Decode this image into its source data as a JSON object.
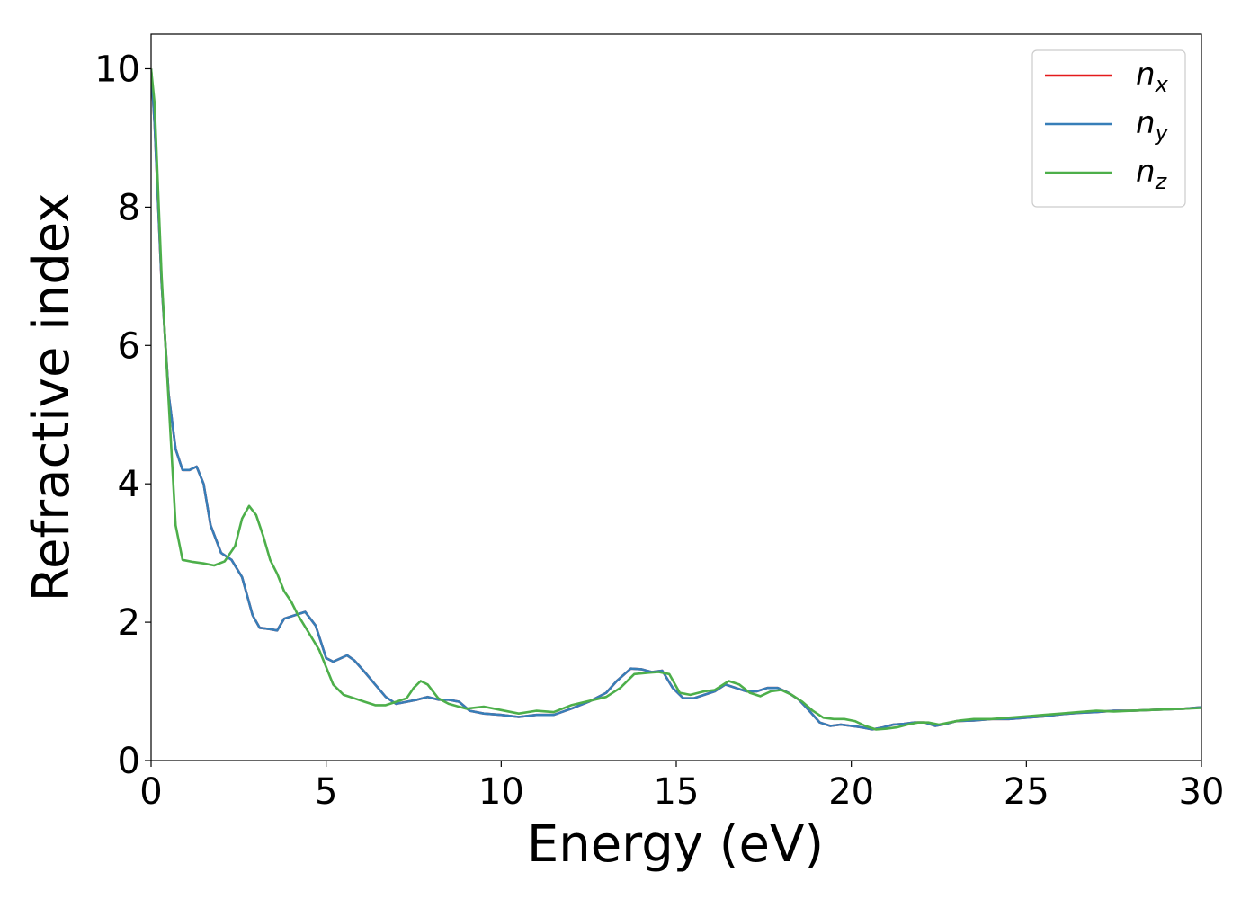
{
  "chart_data": {
    "type": "line",
    "title": "",
    "xlabel": "Energy (eV)",
    "ylabel": "Refractive index",
    "xlim": [
      0,
      30
    ],
    "ylim": [
      0,
      10.5
    ],
    "xticks": [
      0,
      5,
      10,
      15,
      20,
      25,
      30
    ],
    "yticks": [
      0,
      2,
      4,
      6,
      8,
      10
    ],
    "grid": false,
    "legend": "top-right",
    "series": [
      {
        "name": "n_x",
        "label_base": "n",
        "label_sub": "x",
        "color": "#e41a1c",
        "x": [
          0,
          0.1,
          0.3,
          0.5,
          0.7,
          0.9,
          1.1,
          1.3,
          1.5,
          1.7,
          2.0,
          2.3,
          2.6,
          2.9,
          3.1,
          3.4,
          3.6,
          3.8,
          4.1,
          4.4,
          4.7,
          5.0,
          5.2,
          5.6,
          5.8,
          6.1,
          6.4,
          6.7,
          7.0,
          7.3,
          7.6,
          7.9,
          8.2,
          8.5,
          8.8,
          9.1,
          9.5,
          10.0,
          10.5,
          11.0,
          11.5,
          12.0,
          12.5,
          13.0,
          13.3,
          13.7,
          14.0,
          14.3,
          14.6,
          14.9,
          15.2,
          15.5,
          15.8,
          16.1,
          16.4,
          16.7,
          17.0,
          17.3,
          17.6,
          17.9,
          18.2,
          18.5,
          18.8,
          19.1,
          19.4,
          19.7,
          20.0,
          20.3,
          20.6,
          20.9,
          21.2,
          21.5,
          21.8,
          22.1,
          22.4,
          22.7,
          23.0,
          23.5,
          24.0,
          24.5,
          25.0,
          25.5,
          26.0,
          26.5,
          27.0,
          27.5,
          28.0,
          28.5,
          29.0,
          29.5,
          30.0
        ],
        "values": [
          10.0,
          9.2,
          6.9,
          5.3,
          4.5,
          4.2,
          4.2,
          4.25,
          4.0,
          3.4,
          3.0,
          2.9,
          2.65,
          2.1,
          1.92,
          1.9,
          1.88,
          2.05,
          2.1,
          2.15,
          1.95,
          1.48,
          1.43,
          1.52,
          1.45,
          1.28,
          1.1,
          0.92,
          0.82,
          0.85,
          0.88,
          0.92,
          0.88,
          0.88,
          0.85,
          0.72,
          0.68,
          0.66,
          0.63,
          0.66,
          0.66,
          0.75,
          0.85,
          0.98,
          1.15,
          1.33,
          1.32,
          1.28,
          1.3,
          1.05,
          0.9,
          0.9,
          0.95,
          1.0,
          1.1,
          1.05,
          1.0,
          1.0,
          1.05,
          1.05,
          0.98,
          0.88,
          0.72,
          0.55,
          0.5,
          0.52,
          0.5,
          0.48,
          0.45,
          0.48,
          0.52,
          0.53,
          0.55,
          0.55,
          0.5,
          0.53,
          0.57,
          0.58,
          0.6,
          0.6,
          0.62,
          0.64,
          0.67,
          0.69,
          0.7,
          0.72,
          0.72,
          0.73,
          0.74,
          0.75,
          0.77
        ]
      },
      {
        "name": "n_y",
        "label_base": "n",
        "label_sub": "y",
        "color": "#377eb8",
        "x": [
          0,
          0.1,
          0.3,
          0.5,
          0.7,
          0.9,
          1.1,
          1.3,
          1.5,
          1.7,
          2.0,
          2.3,
          2.6,
          2.9,
          3.1,
          3.4,
          3.6,
          3.8,
          4.1,
          4.4,
          4.7,
          5.0,
          5.2,
          5.6,
          5.8,
          6.1,
          6.4,
          6.7,
          7.0,
          7.3,
          7.6,
          7.9,
          8.2,
          8.5,
          8.8,
          9.1,
          9.5,
          10.0,
          10.5,
          11.0,
          11.5,
          12.0,
          12.5,
          13.0,
          13.3,
          13.7,
          14.0,
          14.3,
          14.6,
          14.9,
          15.2,
          15.5,
          15.8,
          16.1,
          16.4,
          16.7,
          17.0,
          17.3,
          17.6,
          17.9,
          18.2,
          18.5,
          18.8,
          19.1,
          19.4,
          19.7,
          20.0,
          20.3,
          20.6,
          20.9,
          21.2,
          21.5,
          21.8,
          22.1,
          22.4,
          22.7,
          23.0,
          23.5,
          24.0,
          24.5,
          25.0,
          25.5,
          26.0,
          26.5,
          27.0,
          27.5,
          28.0,
          28.5,
          29.0,
          29.5,
          30.0
        ],
        "values": [
          10.0,
          9.2,
          6.9,
          5.3,
          4.5,
          4.2,
          4.2,
          4.25,
          4.0,
          3.4,
          3.0,
          2.9,
          2.65,
          2.1,
          1.92,
          1.9,
          1.88,
          2.05,
          2.1,
          2.15,
          1.95,
          1.48,
          1.43,
          1.52,
          1.45,
          1.28,
          1.1,
          0.92,
          0.82,
          0.85,
          0.88,
          0.92,
          0.88,
          0.88,
          0.85,
          0.72,
          0.68,
          0.66,
          0.63,
          0.66,
          0.66,
          0.75,
          0.85,
          0.98,
          1.15,
          1.33,
          1.32,
          1.28,
          1.3,
          1.05,
          0.9,
          0.9,
          0.95,
          1.0,
          1.1,
          1.05,
          1.0,
          1.0,
          1.05,
          1.05,
          0.98,
          0.88,
          0.72,
          0.55,
          0.5,
          0.52,
          0.5,
          0.48,
          0.45,
          0.48,
          0.52,
          0.53,
          0.55,
          0.55,
          0.5,
          0.53,
          0.57,
          0.58,
          0.6,
          0.6,
          0.62,
          0.64,
          0.67,
          0.69,
          0.7,
          0.72,
          0.72,
          0.73,
          0.74,
          0.75,
          0.77
        ]
      },
      {
        "name": "n_z",
        "label_base": "n",
        "label_sub": "z",
        "color": "#4daf4a",
        "x": [
          0,
          0.1,
          0.3,
          0.5,
          0.6,
          0.7,
          0.9,
          1.2,
          1.5,
          1.8,
          2.1,
          2.4,
          2.6,
          2.8,
          3.0,
          3.2,
          3.4,
          3.6,
          3.8,
          4.0,
          4.2,
          4.5,
          4.8,
          5.0,
          5.2,
          5.5,
          5.8,
          6.1,
          6.4,
          6.7,
          7.0,
          7.3,
          7.5,
          7.7,
          7.9,
          8.2,
          8.5,
          9.0,
          9.5,
          10.0,
          10.5,
          11.0,
          11.5,
          12.0,
          12.5,
          13.0,
          13.4,
          13.8,
          14.2,
          14.5,
          14.8,
          15.1,
          15.4,
          15.8,
          16.1,
          16.5,
          16.8,
          17.1,
          17.4,
          17.7,
          18.0,
          18.3,
          18.6,
          18.9,
          19.2,
          19.5,
          19.8,
          20.1,
          20.4,
          20.7,
          21.0,
          21.3,
          21.6,
          21.9,
          22.2,
          22.5,
          22.8,
          23.1,
          23.5,
          24.0,
          24.5,
          25.0,
          25.5,
          26.0,
          26.5,
          27.0,
          27.5,
          28.0,
          28.5,
          29.0,
          29.5,
          30.0
        ],
        "values": [
          10.0,
          9.5,
          7.0,
          5.2,
          4.3,
          3.4,
          2.9,
          2.87,
          2.85,
          2.82,
          2.88,
          3.1,
          3.5,
          3.68,
          3.55,
          3.25,
          2.9,
          2.7,
          2.45,
          2.3,
          2.1,
          1.85,
          1.6,
          1.35,
          1.1,
          0.95,
          0.9,
          0.85,
          0.8,
          0.8,
          0.85,
          0.9,
          1.05,
          1.15,
          1.1,
          0.9,
          0.82,
          0.75,
          0.78,
          0.73,
          0.68,
          0.72,
          0.7,
          0.8,
          0.86,
          0.92,
          1.05,
          1.25,
          1.27,
          1.28,
          1.25,
          0.98,
          0.95,
          1.0,
          1.02,
          1.15,
          1.1,
          0.98,
          0.93,
          1.0,
          1.02,
          0.95,
          0.85,
          0.72,
          0.62,
          0.6,
          0.6,
          0.57,
          0.5,
          0.45,
          0.46,
          0.48,
          0.52,
          0.55,
          0.55,
          0.52,
          0.55,
          0.58,
          0.6,
          0.6,
          0.62,
          0.64,
          0.66,
          0.68,
          0.7,
          0.72,
          0.71,
          0.72,
          0.73,
          0.74,
          0.75,
          0.76
        ]
      }
    ]
  }
}
